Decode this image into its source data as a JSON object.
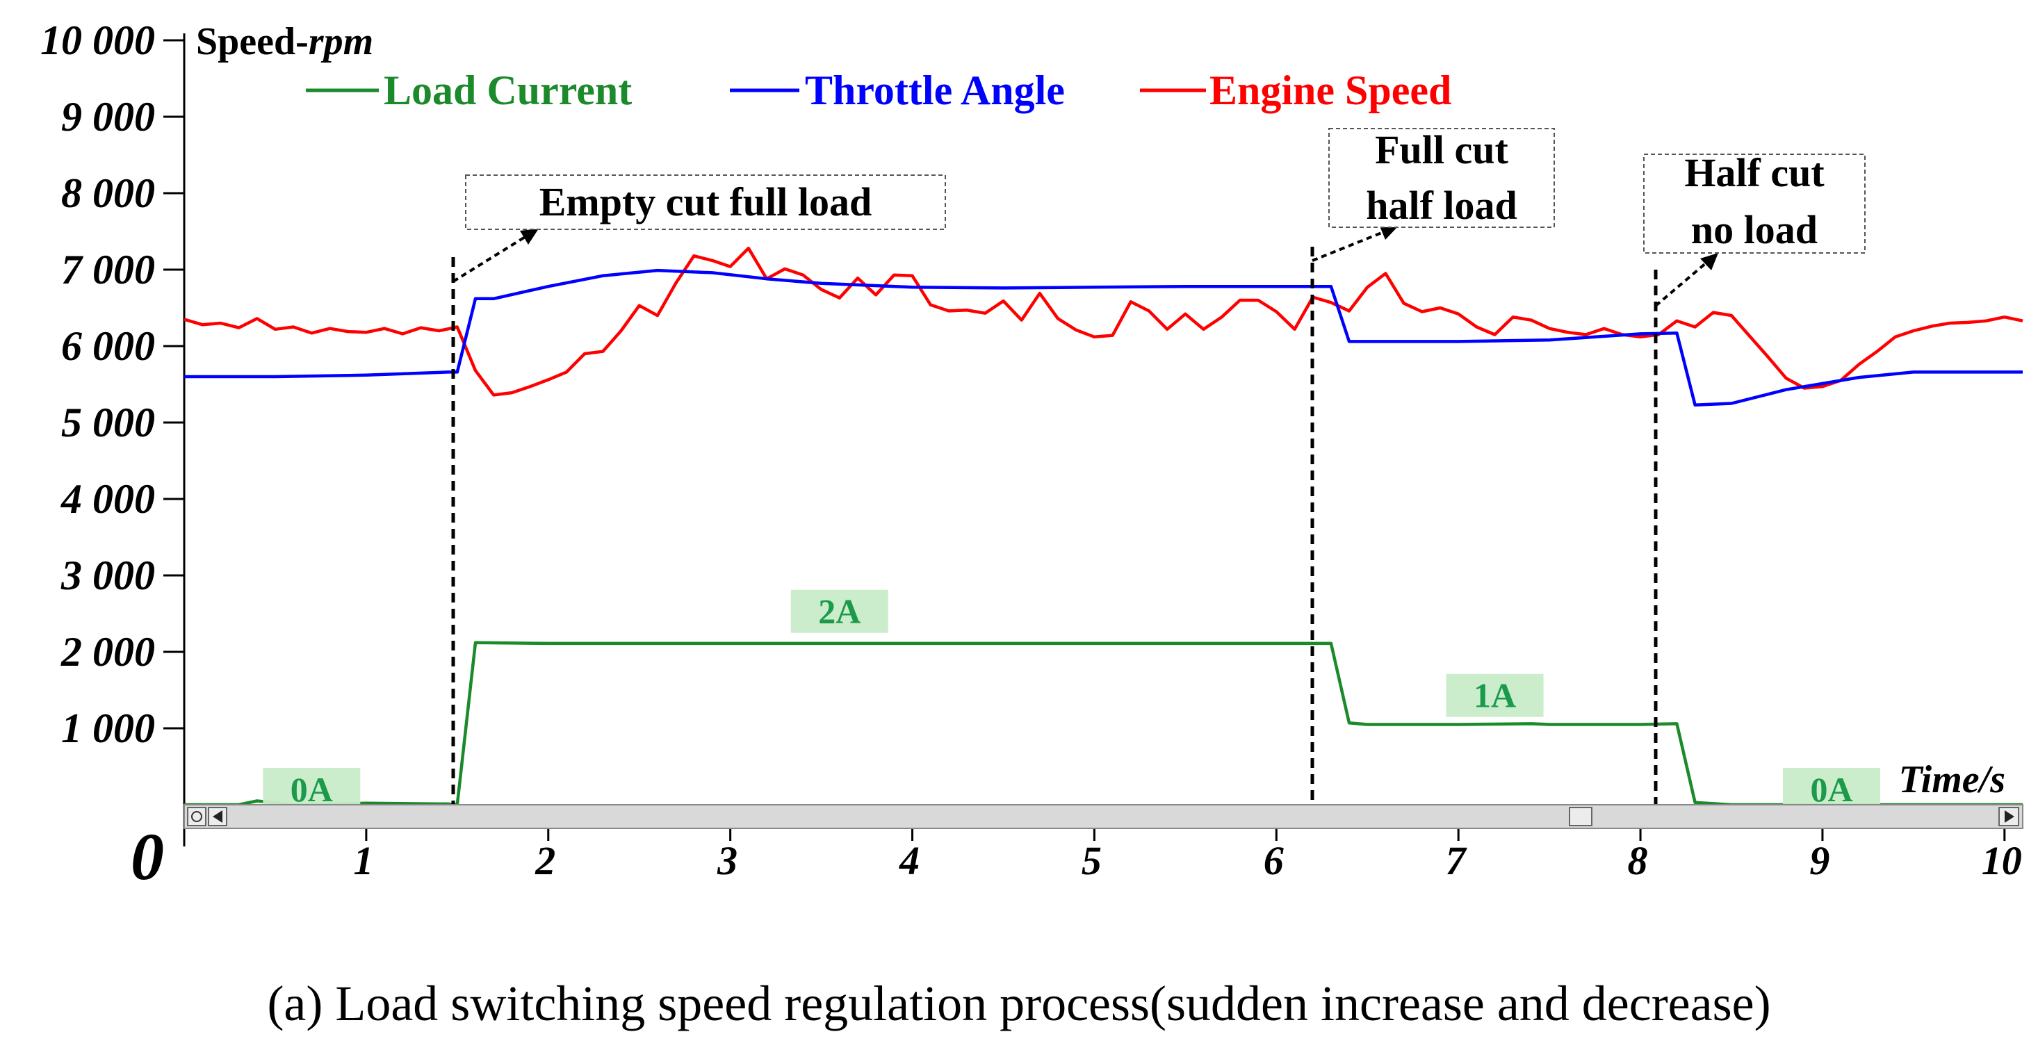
{
  "chart_data": {
    "type": "line",
    "title": "",
    "caption": "(a) Load switching speed regulation process(sudden increase and decrease)",
    "ylabel_prefix": "Speed-",
    "ylabel_unit": "rpm",
    "xlabel": "Time/s",
    "xlim": [
      0,
      10.1
    ],
    "ylim": [
      0,
      10000
    ],
    "x_origin_label": "0",
    "yticks": [
      {
        "value": 1000,
        "label": "1 000"
      },
      {
        "value": 2000,
        "label": "2 000"
      },
      {
        "value": 3000,
        "label": "3 000"
      },
      {
        "value": 4000,
        "label": "4 000"
      },
      {
        "value": 5000,
        "label": "5 000"
      },
      {
        "value": 6000,
        "label": "6 000"
      },
      {
        "value": 7000,
        "label": "7 000"
      },
      {
        "value": 8000,
        "label": "8 000"
      },
      {
        "value": 9000,
        "label": "9 000"
      },
      {
        "value": 10000,
        "label": "10 000"
      }
    ],
    "xticks": [
      {
        "value": 1,
        "label": "1"
      },
      {
        "value": 2,
        "label": "2"
      },
      {
        "value": 3,
        "label": "3"
      },
      {
        "value": 4,
        "label": "4"
      },
      {
        "value": 5,
        "label": "5"
      },
      {
        "value": 6,
        "label": "6"
      },
      {
        "value": 7,
        "label": "7"
      },
      {
        "value": 8,
        "label": "8"
      },
      {
        "value": 9,
        "label": "9"
      },
      {
        "value": 10,
        "label": "10"
      }
    ],
    "legend": [
      {
        "name": "Load Current",
        "color": "#1a8a2a"
      },
      {
        "name": "Throttle Angle",
        "color": "#0000ff"
      },
      {
        "name": "Engine Speed",
        "color": "#ff0000"
      }
    ],
    "series": [
      {
        "name": "Load Current",
        "color": "#1a8a2a",
        "x": [
          0,
          0.3,
          0.4,
          0.6,
          1.0,
          1.45,
          1.5,
          1.6,
          2.0,
          3.0,
          4.0,
          5.0,
          6.0,
          6.3,
          6.4,
          6.5,
          7.0,
          7.4,
          7.5,
          8.0,
          8.2,
          8.3,
          8.5,
          9.0,
          10.1
        ],
        "values": [
          0,
          0,
          50,
          0,
          20,
          10,
          0,
          2120,
          2110,
          2110,
          2110,
          2110,
          2110,
          2110,
          1070,
          1050,
          1050,
          1060,
          1050,
          1050,
          1060,
          30,
          0,
          0,
          0
        ]
      },
      {
        "name": "Throttle Angle",
        "color": "#0000ff",
        "x": [
          0,
          0.5,
          1.0,
          1.45,
          1.5,
          1.6,
          1.7,
          2.0,
          2.3,
          2.6,
          2.9,
          3.2,
          3.5,
          4.0,
          4.5,
          5.0,
          5.5,
          6.0,
          6.3,
          6.4,
          6.6,
          7.0,
          7.5,
          8.0,
          8.2,
          8.3,
          8.5,
          8.8,
          9.2,
          9.5,
          10.1
        ],
        "values": [
          5600,
          5600,
          5620,
          5660,
          5660,
          6620,
          6620,
          6780,
          6920,
          6990,
          6960,
          6880,
          6820,
          6770,
          6760,
          6770,
          6780,
          6780,
          6780,
          6060,
          6060,
          6060,
          6080,
          6160,
          6170,
          5230,
          5250,
          5430,
          5590,
          5660,
          5660
        ]
      },
      {
        "name": "Engine Speed",
        "color": "#ff0000",
        "x": [
          0,
          0.1,
          0.2,
          0.3,
          0.4,
          0.5,
          0.6,
          0.7,
          0.8,
          0.9,
          1.0,
          1.1,
          1.2,
          1.3,
          1.4,
          1.5,
          1.6,
          1.7,
          1.8,
          1.9,
          2.0,
          2.1,
          2.2,
          2.3,
          2.4,
          2.5,
          2.6,
          2.7,
          2.8,
          2.9,
          3.0,
          3.1,
          3.2,
          3.3,
          3.4,
          3.5,
          3.6,
          3.7,
          3.8,
          3.9,
          4.0,
          4.1,
          4.2,
          4.3,
          4.4,
          4.5,
          4.6,
          4.7,
          4.8,
          4.9,
          5.0,
          5.1,
          5.2,
          5.3,
          5.4,
          5.5,
          5.6,
          5.7,
          5.8,
          5.9,
          6.0,
          6.1,
          6.2,
          6.3,
          6.4,
          6.5,
          6.6,
          6.7,
          6.8,
          6.9,
          7.0,
          7.1,
          7.2,
          7.3,
          7.4,
          7.5,
          7.6,
          7.7,
          7.8,
          7.9,
          8.0,
          8.1,
          8.2,
          8.3,
          8.4,
          8.5,
          8.6,
          8.7,
          8.8,
          8.9,
          9.0,
          9.1,
          9.2,
          9.3,
          9.4,
          9.5,
          9.6,
          9.7,
          9.8,
          9.9,
          10.0,
          10.1
        ],
        "values": [
          6350,
          6280,
          6300,
          6240,
          6360,
          6220,
          6250,
          6170,
          6230,
          6190,
          6180,
          6230,
          6160,
          6240,
          6200,
          6250,
          5680,
          5360,
          5390,
          5470,
          5560,
          5660,
          5900,
          5930,
          6200,
          6530,
          6400,
          6820,
          7180,
          7120,
          7040,
          7280,
          6880,
          7010,
          6930,
          6740,
          6630,
          6890,
          6670,
          6930,
          6920,
          6540,
          6460,
          6470,
          6430,
          6590,
          6340,
          6690,
          6360,
          6210,
          6120,
          6140,
          6580,
          6460,
          6220,
          6420,
          6220,
          6380,
          6600,
          6600,
          6450,
          6220,
          6640,
          6570,
          6460,
          6770,
          6950,
          6560,
          6450,
          6500,
          6420,
          6250,
          6150,
          6380,
          6340,
          6230,
          6180,
          6150,
          6230,
          6150,
          6120,
          6150,
          6330,
          6250,
          6440,
          6400,
          6130,
          5860,
          5580,
          5450,
          5470,
          5550,
          5760,
          5930,
          6120,
          6200,
          6260,
          6300,
          6310,
          6330,
          6380,
          6330
        ]
      }
    ],
    "events": [
      {
        "x": 1.48,
        "label_lines": [
          "Empty cut full load"
        ]
      },
      {
        "x": 6.3,
        "label_lines": [
          "Full cut",
          "half load"
        ]
      },
      {
        "x": 8.2,
        "label_lines": [
          "Half cut",
          "no load"
        ]
      }
    ],
    "current_tags": [
      {
        "x": 0.7,
        "y": 200,
        "label": "0A"
      },
      {
        "x": 3.6,
        "y": 2530,
        "label": "2A"
      },
      {
        "x": 7.2,
        "y": 1430,
        "label": "1A"
      },
      {
        "x": 9.05,
        "y": 200,
        "label": "0A"
      }
    ]
  }
}
